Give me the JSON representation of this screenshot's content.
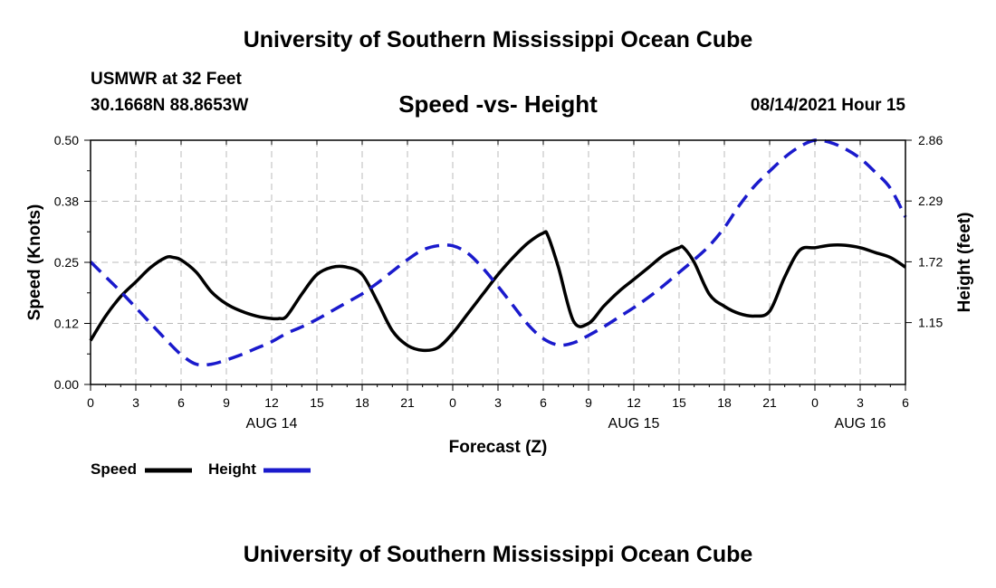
{
  "header": {
    "title": "University of Southern Mississippi Ocean Cube",
    "footer_title": "University of Southern Mississippi Ocean Cube",
    "station": "USMWR at 32 Feet",
    "coordinates": "30.1668N  88.8653W",
    "chart_title": "Speed -vs- Height",
    "timestamp": "08/14/2021 Hour 15"
  },
  "legend": {
    "speed_label": "Speed",
    "height_label": "Height"
  },
  "colors": {
    "speed": "#000000",
    "height": "#1a1acc",
    "grid": "#bbbbbb"
  },
  "chart_data": {
    "type": "line",
    "title": "Speed -vs- Height",
    "xlabel": "Forecast (Z)",
    "ylabel": "Speed (Knots)",
    "y2label": "Height (feet)",
    "xlim": [
      0,
      54
    ],
    "ylim": [
      0,
      0.5
    ],
    "y2lim": [
      0.57,
      2.86
    ],
    "grid": true,
    "x_ticks": [
      0,
      3,
      6,
      9,
      12,
      15,
      18,
      21,
      24,
      27,
      30,
      33,
      36,
      39,
      42,
      45,
      48,
      51,
      54
    ],
    "x_tick_labels": [
      "0",
      "3",
      "6",
      "9",
      "12",
      "15",
      "18",
      "21",
      "0",
      "3",
      "6",
      "9",
      "12",
      "15",
      "18",
      "21",
      "0",
      "3",
      "6"
    ],
    "y_ticks": [
      0.0,
      0.125,
      0.25,
      0.375,
      0.5
    ],
    "y_tick_labels": [
      "0.00",
      "0.12",
      "0.25",
      "0.38",
      "0.50"
    ],
    "y2_ticks": [
      1.15,
      1.72,
      2.29,
      2.86
    ],
    "y2_tick_labels": [
      "1.15",
      "1.72",
      "2.29",
      "2.86"
    ],
    "date_labels": [
      {
        "x": 12,
        "label": "AUG 14"
      },
      {
        "x": 36,
        "label": "AUG 15"
      },
      {
        "x": 51,
        "label": "AUG 16"
      }
    ],
    "series": [
      {
        "name": "Speed",
        "axis": "left",
        "style": "solid",
        "x": [
          0,
          1,
          2,
          3,
          4,
          5,
          5.5,
          6,
          7,
          8,
          9,
          10,
          11,
          12,
          12.5,
          13,
          14,
          15,
          16,
          17,
          18,
          19,
          20,
          21,
          22,
          23,
          24,
          25,
          26,
          27,
          28,
          29,
          30,
          30.3,
          31,
          32,
          33,
          34,
          35,
          36,
          37,
          38,
          39,
          39.3,
          40,
          41,
          42,
          43,
          44,
          45,
          46,
          47,
          48,
          49,
          50,
          51,
          52,
          53,
          54
        ],
        "values": [
          0.09,
          0.14,
          0.18,
          0.21,
          0.24,
          0.26,
          0.26,
          0.255,
          0.23,
          0.19,
          0.165,
          0.15,
          0.14,
          0.135,
          0.135,
          0.14,
          0.185,
          0.225,
          0.24,
          0.24,
          0.225,
          0.17,
          0.11,
          0.08,
          0.07,
          0.075,
          0.105,
          0.145,
          0.185,
          0.225,
          0.26,
          0.29,
          0.31,
          0.305,
          0.24,
          0.13,
          0.125,
          0.16,
          0.19,
          0.215,
          0.24,
          0.265,
          0.28,
          0.28,
          0.25,
          0.185,
          0.16,
          0.145,
          0.14,
          0.15,
          0.22,
          0.275,
          0.28,
          0.285,
          0.285,
          0.28,
          0.27,
          0.26,
          0.24
        ]
      },
      {
        "name": "Height",
        "axis": "right",
        "style": "dashed",
        "x": [
          0,
          1,
          2,
          3,
          4,
          5,
          6,
          7,
          8,
          9,
          10,
          11,
          12,
          13,
          14,
          15,
          16,
          17,
          18,
          19,
          20,
          21,
          22,
          23,
          24,
          25,
          26,
          27,
          28,
          29,
          30,
          31,
          32,
          33,
          34,
          35,
          36,
          37,
          38,
          39,
          40,
          41,
          42,
          43,
          44,
          45,
          46,
          47,
          48,
          49,
          50,
          51,
          52,
          53,
          54
        ],
        "values": [
          1.72,
          1.58,
          1.44,
          1.29,
          1.14,
          0.99,
          0.85,
          0.76,
          0.76,
          0.8,
          0.85,
          0.91,
          0.97,
          1.05,
          1.11,
          1.18,
          1.26,
          1.34,
          1.42,
          1.52,
          1.63,
          1.74,
          1.83,
          1.87,
          1.87,
          1.8,
          1.66,
          1.49,
          1.31,
          1.13,
          1.0,
          0.94,
          0.96,
          1.03,
          1.11,
          1.2,
          1.29,
          1.39,
          1.5,
          1.62,
          1.74,
          1.87,
          2.04,
          2.25,
          2.43,
          2.57,
          2.7,
          2.8,
          2.86,
          2.84,
          2.78,
          2.69,
          2.56,
          2.41,
          2.14
        ]
      }
    ]
  }
}
